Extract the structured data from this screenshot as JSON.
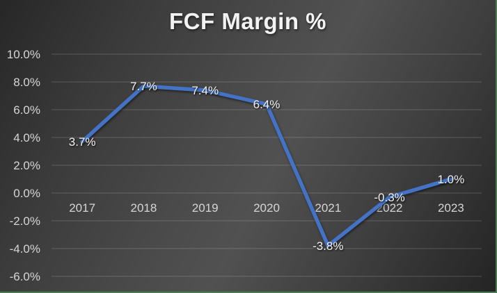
{
  "chart_data": {
    "type": "line",
    "title": "FCF Margin %",
    "categories": [
      "2017",
      "2018",
      "2019",
      "2020",
      "2021",
      "2022",
      "2023"
    ],
    "series": [
      {
        "name": "FCF Margin %",
        "values": [
          3.7,
          7.7,
          7.4,
          6.4,
          -3.8,
          -0.3,
          1.0
        ]
      }
    ],
    "data_labels": [
      "3.7%",
      "7.7%",
      "7.4%",
      "6.4%",
      "-3.8%",
      "-0.3%",
      "1.0%"
    ],
    "data_label_position": "center",
    "xlabel": "",
    "ylabel": "",
    "y_ticks": [
      {
        "value": 10,
        "label": "10.0%"
      },
      {
        "value": 8,
        "label": "8.0%"
      },
      {
        "value": 6,
        "label": "6.0%"
      },
      {
        "value": 4,
        "label": "4.0%"
      },
      {
        "value": 2,
        "label": "2.0%"
      },
      {
        "value": 0,
        "label": "0.0%"
      },
      {
        "value": -2,
        "label": "-2.0%"
      },
      {
        "value": -4,
        "label": "-4.0%"
      },
      {
        "value": -6,
        "label": "-6.0%"
      }
    ],
    "ylim": [
      -6,
      10
    ],
    "grid": true,
    "legend": "none"
  },
  "colors": {
    "line": "#4472C4",
    "title_text": "#f2f2f2",
    "axis_text": "#d6d6d6",
    "data_label_text": "#f2f2f2",
    "gridline": "#6b6b6b",
    "frame_border": "#4f7b52"
  }
}
